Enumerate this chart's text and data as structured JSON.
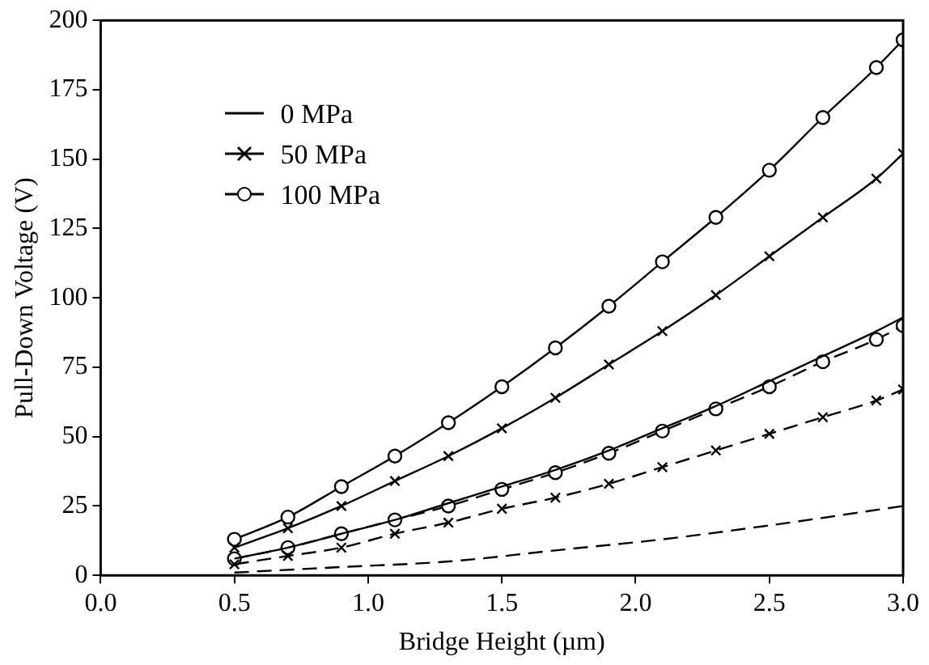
{
  "chart_data": {
    "type": "line",
    "xlabel": "Bridge Height (µm)",
    "ylabel": "Pull-Down Voltage (V)",
    "xlim": [
      0,
      3
    ],
    "ylim": [
      0,
      200
    ],
    "xticks": [
      {
        "value": 0,
        "label": "0.0"
      },
      {
        "value": 0.5,
        "label": "0.5"
      },
      {
        "value": 1,
        "label": "1.0"
      },
      {
        "value": 1.5,
        "label": "1.5"
      },
      {
        "value": 2,
        "label": "2.0"
      },
      {
        "value": 2.5,
        "label": "2.5"
      },
      {
        "value": 3,
        "label": "3.0"
      }
    ],
    "yticks": [
      0,
      25,
      50,
      75,
      100,
      125,
      150,
      175,
      200
    ],
    "grid": false,
    "legend": "top left",
    "series": [
      {
        "name": "0 MPa",
        "color": "#000000",
        "marker": "none",
        "line_style": "solid",
        "x": [
          0.5,
          0.7,
          0.9,
          1.1,
          1.3,
          1.5,
          1.7,
          1.9,
          2.1,
          2.3,
          2.5,
          2.7,
          2.9,
          3.0
        ],
        "values": [
          6,
          10,
          15,
          20,
          26,
          32,
          38,
          45,
          53,
          61,
          70,
          79,
          88,
          93
        ]
      },
      {
        "name": "50 MPa",
        "color": "#000000",
        "marker": "cross",
        "line_style": "solid",
        "x": [
          0.5,
          0.7,
          0.9,
          1.1,
          1.3,
          1.5,
          1.7,
          1.9,
          2.1,
          2.3,
          2.5,
          2.7,
          2.9,
          3.0
        ],
        "values": [
          10,
          17,
          25,
          34,
          43,
          53,
          64,
          76,
          88,
          101,
          115,
          129,
          143,
          152
        ]
      },
      {
        "name": "100 MPa",
        "color": "#000000",
        "marker": "circle",
        "line_style": "solid",
        "x": [
          0.5,
          0.7,
          0.9,
          1.1,
          1.3,
          1.5,
          1.7,
          1.9,
          2.1,
          2.3,
          2.5,
          2.7,
          2.9,
          3.0
        ],
        "values": [
          13,
          21,
          32,
          43,
          55,
          68,
          82,
          97,
          113,
          129,
          146,
          165,
          183,
          193
        ]
      },
      {
        "color": "#000000",
        "marker": "none",
        "line_style": "dashed",
        "x": [
          0.5,
          0.9,
          1.3,
          1.7,
          2.1,
          2.5,
          3.0
        ],
        "values": [
          1,
          3,
          5,
          9,
          13,
          18,
          25
        ]
      },
      {
        "color": "#000000",
        "marker": "cross",
        "line_style": "dashed",
        "x": [
          0.5,
          0.7,
          0.9,
          1.1,
          1.3,
          1.5,
          1.7,
          1.9,
          2.1,
          2.3,
          2.5,
          2.7,
          2.9,
          3.0
        ],
        "values": [
          4,
          7,
          10,
          15,
          19,
          24,
          28,
          33,
          39,
          45,
          51,
          57,
          63,
          67
        ]
      },
      {
        "color": "#000000",
        "marker": "circle",
        "line_style": "dashed",
        "x": [
          0.5,
          0.7,
          0.9,
          1.1,
          1.3,
          1.5,
          1.7,
          1.9,
          2.1,
          2.3,
          2.5,
          2.7,
          2.9,
          3.0
        ],
        "values": [
          6,
          10,
          15,
          20,
          25,
          31,
          37,
          44,
          52,
          60,
          68,
          77,
          85,
          90
        ]
      }
    ]
  }
}
